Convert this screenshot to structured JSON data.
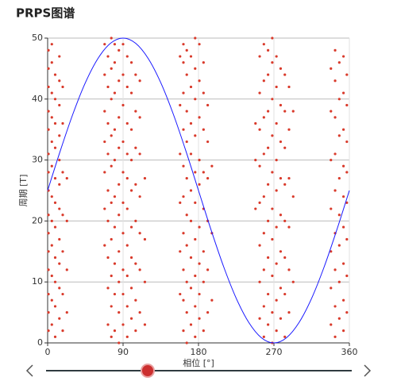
{
  "chart_data": {
    "type": "scatter",
    "title": "PRPS图谱",
    "xlabel": "相位 [°]",
    "ylabel": "周期 [T]",
    "xlim": [
      0,
      360
    ],
    "ylim": [
      0,
      50
    ],
    "xticks": [
      0,
      90,
      180,
      270,
      360
    ],
    "yticks": [
      0,
      10,
      20,
      30,
      40,
      50
    ],
    "grid": true,
    "series": [
      {
        "type": "scatter",
        "color": "#d93a2b",
        "x": [
          1,
          1,
          1,
          1,
          1,
          1,
          1,
          1,
          1,
          1,
          1,
          1,
          1,
          1,
          1,
          5,
          5,
          5,
          5,
          5,
          5,
          5,
          5,
          5,
          5,
          5,
          5,
          9,
          9,
          9,
          9,
          9,
          9,
          9,
          9,
          9,
          9,
          9,
          14,
          14,
          14,
          14,
          14,
          14,
          14,
          14,
          14,
          14,
          14,
          18,
          18,
          18,
          18,
          18,
          18,
          18,
          23,
          23,
          23,
          23,
          68,
          68,
          68,
          68,
          68,
          68,
          68,
          72,
          72,
          72,
          72,
          72,
          72,
          72,
          72,
          72,
          76,
          76,
          76,
          76,
          76,
          76,
          76,
          76,
          76,
          76,
          80,
          80,
          80,
          80,
          80,
          80,
          80,
          80,
          80,
          80,
          85,
          85,
          85,
          85,
          85,
          85,
          85,
          85,
          85,
          85,
          90,
          90,
          90,
          90,
          90,
          90,
          90,
          90,
          90,
          90,
          95,
          95,
          95,
          95,
          95,
          95,
          95,
          95,
          95,
          95,
          100,
          100,
          100,
          100,
          100,
          100,
          100,
          100,
          100,
          105,
          105,
          105,
          105,
          105,
          105,
          105,
          105,
          110,
          110,
          110,
          110,
          110,
          110,
          110,
          116,
          116,
          116,
          116,
          158,
          158,
          158,
          158,
          158,
          158,
          162,
          162,
          162,
          162,
          162,
          162,
          162,
          162,
          162,
          162,
          166,
          166,
          166,
          166,
          166,
          166,
          166,
          166,
          166,
          166,
          171,
          171,
          171,
          171,
          171,
          171,
          171,
          171,
          171,
          176,
          176,
          176,
          176,
          176,
          176,
          176,
          176,
          176,
          176,
          181,
          181,
          181,
          181,
          181,
          181,
          181,
          181,
          181,
          186,
          186,
          186,
          186,
          186,
          186,
          186,
          186,
          191,
          191,
          191,
          191,
          191,
          191,
          196,
          196,
          196,
          248,
          248,
          248,
          253,
          253,
          253,
          253,
          253,
          253,
          253,
          253,
          258,
          258,
          258,
          258,
          258,
          258,
          258,
          258,
          258,
          263,
          263,
          263,
          263,
          263,
          263,
          263,
          263,
          263,
          268,
          268,
          268,
          268,
          268,
          268,
          268,
          268,
          268,
          268,
          273,
          273,
          273,
          273,
          273,
          273,
          273,
          273,
          273,
          278,
          278,
          278,
          278,
          278,
          278,
          278,
          278,
          283,
          283,
          283,
          283,
          283,
          283,
          283,
          283,
          288,
          288,
          288,
          288,
          288,
          288,
          293,
          293,
          293,
          338,
          338,
          338,
          338,
          338,
          338,
          338,
          343,
          343,
          343,
          343,
          343,
          343,
          343,
          343,
          343,
          348,
          348,
          348,
          348,
          348,
          348,
          348,
          348,
          353,
          353,
          353,
          353,
          353,
          353,
          353,
          353,
          353,
          357,
          357,
          357,
          357,
          357,
          357,
          357,
          357
        ],
        "values": [
          2,
          5,
          8,
          12,
          15,
          18,
          21,
          25,
          28,
          31,
          35,
          38,
          42,
          45,
          48,
          3,
          7,
          11,
          16,
          20,
          24,
          29,
          33,
          37,
          41,
          46,
          49,
          1,
          6,
          10,
          14,
          19,
          23,
          27,
          32,
          36,
          40,
          44,
          4,
          9,
          13,
          17,
          22,
          26,
          30,
          34,
          39,
          43,
          47,
          2,
          8,
          15,
          21,
          28,
          36,
          42,
          5,
          12,
          20,
          27,
          16,
          22,
          28,
          33,
          38,
          44,
          49,
          3,
          9,
          14,
          20,
          25,
          31,
          36,
          42,
          47,
          1,
          6,
          11,
          17,
          23,
          29,
          34,
          40,
          45,
          50,
          2,
          8,
          13,
          19,
          24,
          30,
          35,
          41,
          46,
          49,
          0,
          5,
          10,
          15,
          21,
          26,
          32,
          37,
          43,
          48,
          3,
          8,
          12,
          18,
          23,
          28,
          33,
          39,
          44,
          49,
          1,
          6,
          11,
          16,
          22,
          27,
          31,
          36,
          42,
          47,
          4,
          9,
          14,
          19,
          25,
          30,
          35,
          41,
          46,
          2,
          7,
          13,
          20,
          26,
          32,
          38,
          44,
          5,
          12,
          18,
          24,
          31,
          37,
          43,
          3,
          10,
          17,
          27,
          8,
          15,
          23,
          31,
          39,
          47,
          2,
          7,
          12,
          18,
          24,
          29,
          35,
          41,
          46,
          49,
          0,
          5,
          10,
          16,
          21,
          27,
          33,
          38,
          44,
          48,
          3,
          9,
          14,
          20,
          25,
          31,
          36,
          42,
          47,
          1,
          6,
          11,
          17,
          23,
          28,
          34,
          40,
          45,
          50,
          4,
          8,
          13,
          19,
          26,
          30,
          37,
          43,
          49,
          2,
          10,
          15,
          22,
          28,
          35,
          41,
          46,
          5,
          12,
          20,
          27,
          33,
          39,
          7,
          18,
          29,
          22,
          30,
          36,
          4,
          10,
          16,
          23,
          29,
          35,
          41,
          47,
          1,
          6,
          12,
          18,
          24,
          31,
          37,
          43,
          49,
          3,
          8,
          14,
          20,
          26,
          32,
          38,
          44,
          48,
          0,
          5,
          11,
          17,
          22,
          28,
          34,
          40,
          46,
          50,
          2,
          7,
          13,
          19,
          25,
          30,
          36,
          42,
          47,
          4,
          9,
          15,
          21,
          27,
          33,
          39,
          45,
          1,
          8,
          14,
          20,
          26,
          32,
          38,
          44,
          5,
          12,
          19,
          27,
          35,
          42,
          10,
          24,
          38,
          3,
          9,
          15,
          22,
          30,
          38,
          45,
          1,
          6,
          12,
          18,
          25,
          31,
          37,
          43,
          48,
          4,
          10,
          16,
          21,
          27,
          34,
          40,
          46,
          2,
          7,
          13,
          19,
          24,
          29,
          35,
          41,
          47,
          5,
          11,
          17,
          23,
          28,
          33,
          39,
          44
        ]
      },
      {
        "type": "line",
        "color": "#1a1aff",
        "x": [
          0,
          15,
          30,
          45,
          60,
          75,
          90,
          105,
          120,
          135,
          150,
          165,
          180,
          195,
          210,
          225,
          240,
          255,
          270,
          285,
          300,
          315,
          330,
          345,
          360
        ],
        "values": [
          25,
          31.47,
          37.5,
          42.68,
          46.65,
          49.15,
          50,
          49.15,
          46.65,
          42.68,
          37.5,
          31.47,
          25,
          18.53,
          12.5,
          7.32,
          3.35,
          0.85,
          0,
          0.85,
          3.35,
          7.32,
          12.5,
          18.53,
          25
        ]
      }
    ]
  }
}
